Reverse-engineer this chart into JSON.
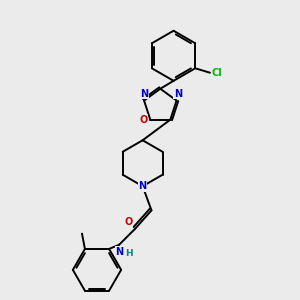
{
  "bg_color": "#ebebeb",
  "bond_color": "#000000",
  "N_color": "#0000cc",
  "O_color": "#cc0000",
  "Cl_color": "#00bb00",
  "H_color": "#008888",
  "fig_size": [
    3.0,
    3.0
  ],
  "dpi": 100,
  "xlim": [
    0,
    10
  ],
  "ylim": [
    0,
    10
  ]
}
